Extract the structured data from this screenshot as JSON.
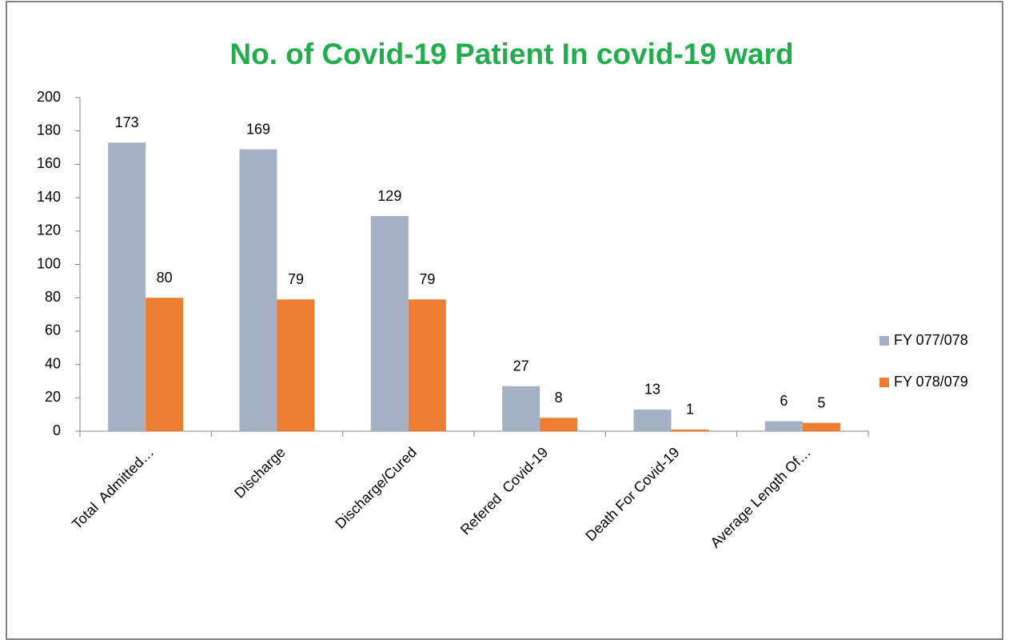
{
  "chart_data": {
    "type": "bar",
    "title": "No. of Covid-19 Patient In covid-19 ward",
    "categories": [
      "Total  Admitted…",
      "Discharge",
      "Discharge/Cured",
      "Refered  Covid-19",
      "Death For Covid-19",
      "Average Length Of…"
    ],
    "series": [
      {
        "name": "FY 077/078",
        "color": "#a5b0c5",
        "values": [
          173,
          169,
          129,
          27,
          13,
          6
        ]
      },
      {
        "name": "FY 078/079",
        "color": "#ed7d31",
        "values": [
          80,
          79,
          79,
          8,
          1,
          5
        ]
      }
    ],
    "ylim": [
      0,
      200
    ],
    "yticks": [
      0,
      20,
      40,
      60,
      80,
      100,
      120,
      140,
      160,
      180,
      200
    ],
    "grid": false,
    "legend": "right"
  }
}
